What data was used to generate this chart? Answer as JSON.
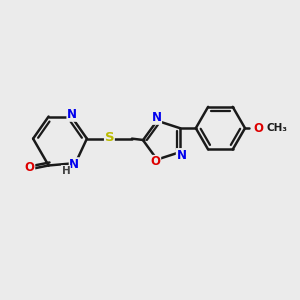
{
  "background_color": "#ebebeb",
  "bond_color": "#1a1a1a",
  "bond_width": 1.8,
  "atom_colors": {
    "N": "#0000ee",
    "O": "#dd0000",
    "S": "#bbbb00",
    "C": "#1a1a1a",
    "H": "#444444"
  },
  "font_size": 8.5,
  "fig_width": 3.0,
  "fig_height": 3.0,
  "xlim": [
    0,
    10
  ],
  "ylim": [
    0,
    10
  ]
}
